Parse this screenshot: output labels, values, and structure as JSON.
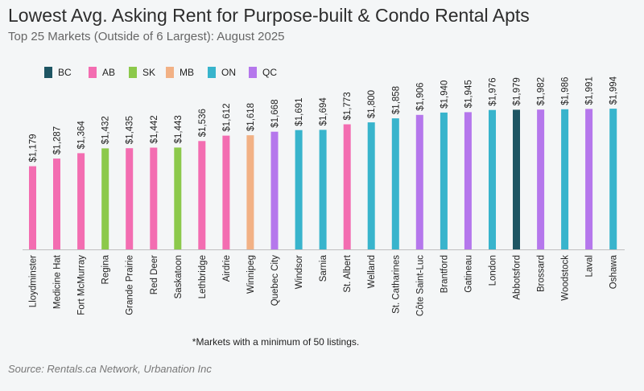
{
  "title": "Lowest Avg. Asking Rent for Purpose-built & Condo Rental Apts",
  "subtitle": "Top 25 Markets (Outside of 6 Largest): August 2025",
  "note": "*Markets with a minimum of 50 listings.",
  "source": "Source: Rentals.ca Network, Urbanation Inc",
  "colors": {
    "BC": "#1e5563",
    "AB": "#f36db1",
    "SK": "#8cc94b",
    "MB": "#f2b185",
    "ON": "#38b4cc",
    "QC": "#b577ec",
    "background": "#f4f6f7"
  },
  "legend": [
    {
      "label": "BC",
      "key": "BC"
    },
    {
      "label": "AB",
      "key": "AB"
    },
    {
      "label": "SK",
      "key": "SK"
    },
    {
      "label": "MB",
      "key": "MB"
    },
    {
      "label": "ON",
      "key": "ON"
    },
    {
      "label": "QC",
      "key": "QC"
    }
  ],
  "chart_data": {
    "type": "bar",
    "title": "Lowest Avg. Asking Rent for Purpose-built & Condo Rental Apts",
    "subtitle": "Top 25 Markets (Outside of 6 Largest): August 2025",
    "xlabel": "",
    "ylabel": "",
    "ylim": [
      0,
      2000
    ],
    "grid": false,
    "legend_position": "top-left",
    "value_prefix": "$",
    "categories": [
      "Lloydminster",
      "Medicine Hat",
      "Fort McMurray",
      "Regina",
      "Grande Prairie",
      "Red Deer",
      "Saskatoon",
      "Lethbridge",
      "Airdrie",
      "Winnipeg",
      "Quebec City",
      "Windsor",
      "Sarnia",
      "St. Albert",
      "Welland",
      "St. Catharines",
      "Côte Saint-Luc",
      "Brantford",
      "Gatineau",
      "London",
      "Abbotsford",
      "Brossard",
      "Woodstock",
      "Laval",
      "Oshawa"
    ],
    "values": [
      1179,
      1287,
      1364,
      1432,
      1435,
      1442,
      1443,
      1536,
      1612,
      1618,
      1668,
      1691,
      1694,
      1773,
      1800,
      1858,
      1906,
      1940,
      1945,
      1976,
      1979,
      1982,
      1986,
      1991,
      1994
    ],
    "labels": [
      "$1,179",
      "$1,287",
      "$1,364",
      "$1,432",
      "$1,435",
      "$1,442",
      "$1,443",
      "$1,536",
      "$1,612",
      "$1,618",
      "$1,668",
      "$1,691",
      "$1,694",
      "$1,773",
      "$1,800",
      "$1,858",
      "$1,906",
      "$1,940",
      "$1,945",
      "$1,976",
      "$1,979",
      "$1,982",
      "$1,986",
      "$1,991",
      "$1,994"
    ],
    "province": [
      "AB",
      "AB",
      "AB",
      "SK",
      "AB",
      "AB",
      "SK",
      "AB",
      "AB",
      "MB",
      "QC",
      "ON",
      "ON",
      "AB",
      "ON",
      "ON",
      "QC",
      "ON",
      "QC",
      "ON",
      "BC",
      "QC",
      "ON",
      "QC",
      "ON"
    ]
  }
}
